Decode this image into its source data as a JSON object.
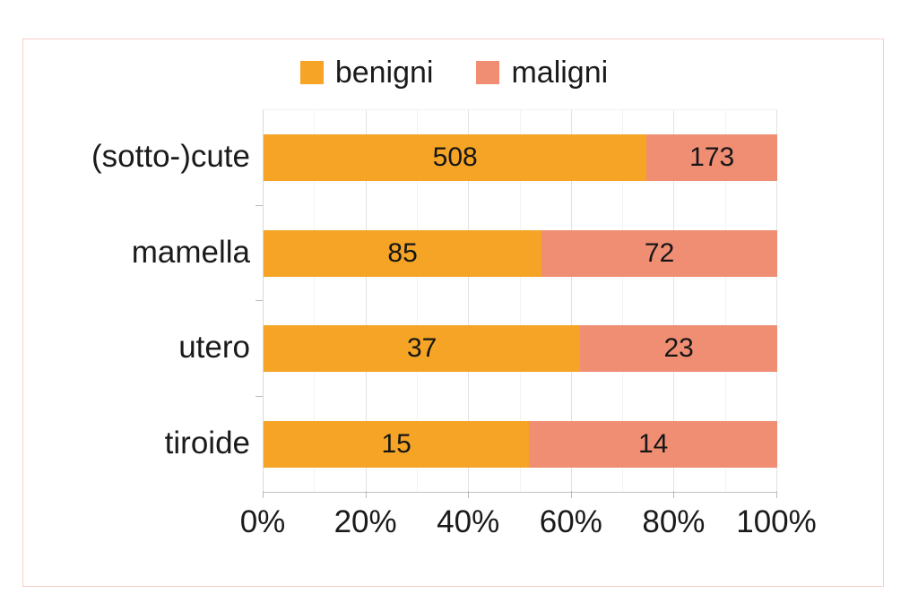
{
  "chart_data": {
    "type": "bar",
    "orientation": "horizontal",
    "stacked": true,
    "percent_stacked": true,
    "title": "",
    "categories": [
      "(sotto-)cute",
      "mamella",
      "utero",
      "tiroide"
    ],
    "series": [
      {
        "name": "benigni",
        "color": "#F5A425",
        "values": [
          508,
          85,
          37,
          15
        ]
      },
      {
        "name": "maligni",
        "color": "#F08E74",
        "values": [
          173,
          72,
          23,
          14
        ]
      }
    ],
    "x_axis": {
      "range": [
        0,
        100
      ],
      "tick_labels": [
        "0%",
        "20%",
        "40%",
        "60%",
        "80%",
        "100%"
      ],
      "major_step_percent": 20,
      "minor_step_percent": 10
    },
    "legend_position": "top",
    "grid": true
  },
  "colors": {
    "benigni": "#F5A425",
    "maligni": "#F08E74",
    "text": "#1a1a1a",
    "frame_border": "#f6cfc6",
    "gridline_minor": "#f3f3f3",
    "gridline_major": "#e2e2e6",
    "tick": "#b7bcc0"
  }
}
